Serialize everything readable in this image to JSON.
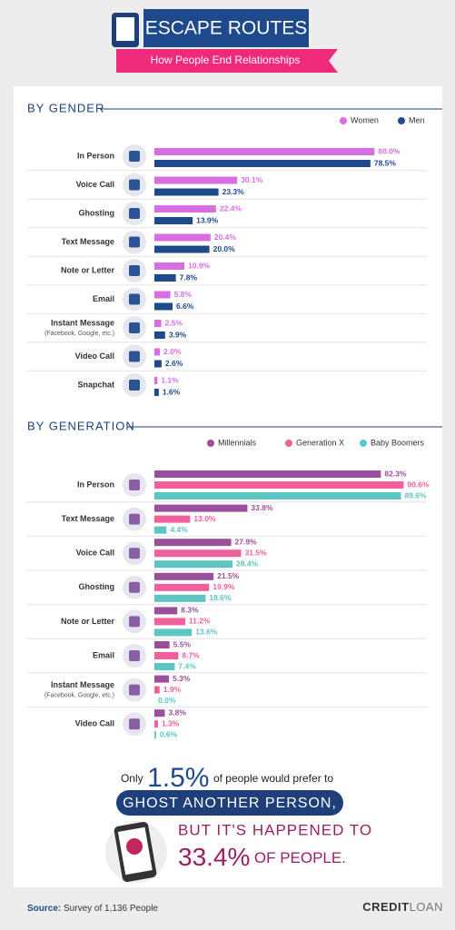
{
  "header": {
    "title": "ESCAPE ROUTES",
    "subtitle": "How People End Relationships"
  },
  "chart_data": [
    {
      "type": "bar",
      "title": "BY GENDER",
      "categories": [
        "In Person",
        "Voice Call",
        "Ghosting",
        "Text Message",
        "Note or Letter",
        "Email",
        "Instant Message",
        "Video Call",
        "Snapchat"
      ],
      "category_notes": [
        null,
        null,
        null,
        null,
        null,
        null,
        "(Facebook, Google, etc.)",
        null,
        null
      ],
      "series": [
        {
          "name": "Women",
          "color": "#d96ee0",
          "values": [
            80.0,
            30.1,
            22.4,
            20.4,
            10.9,
            5.8,
            2.5,
            2.0,
            1.1
          ],
          "value_labels": [
            "80.0%",
            "30.1%",
            "22.4%",
            "20.4%",
            "10.9%",
            "5.8%",
            "2.5%",
            "2.0%",
            "1.1%"
          ]
        },
        {
          "name": "Men",
          "color": "#1e4a8c",
          "values": [
            78.5,
            23.3,
            13.9,
            20.0,
            7.8,
            6.6,
            3.9,
            2.6,
            1.6
          ],
          "value_labels": [
            "78.5%",
            "23.3%",
            "13.9%",
            "20.0%",
            "7.8%",
            "6.6%",
            "3.9%",
            "2.6%",
            "1.6%"
          ]
        }
      ]
    },
    {
      "type": "bar",
      "title": "BY GENERATION",
      "categories": [
        "In Person",
        "Text Message",
        "Voice Call",
        "Ghosting",
        "Note or Letter",
        "Email",
        "Instant Message",
        "Video Call"
      ],
      "category_notes": [
        null,
        null,
        null,
        null,
        null,
        null,
        "(Facebook, Google, etc.)",
        null
      ],
      "series": [
        {
          "name": "Millennials",
          "color": "#9b4f9b",
          "values": [
            82.3,
            33.8,
            27.9,
            21.5,
            8.3,
            5.5,
            5.3,
            3.8
          ],
          "value_labels": [
            "82.3%",
            "33.8%",
            "27.9%",
            "21.5%",
            "8.3%",
            "5.5%",
            "5.3%",
            "3.8%"
          ]
        },
        {
          "name": "Generation X",
          "color": "#f0609a",
          "values": [
            90.6,
            13.0,
            31.5,
            19.9,
            11.2,
            8.7,
            1.9,
            1.3
          ],
          "value_labels": [
            "90.6%",
            "13.0%",
            "31.5%",
            "19.9%",
            "11.2%",
            "8.7%",
            "1.9%",
            "1.3%"
          ]
        },
        {
          "name": "Baby Boomers",
          "color": "#5fc4c4",
          "values": [
            89.6,
            4.4,
            28.4,
            18.6,
            13.6,
            7.4,
            0.0,
            0.6
          ],
          "value_labels": [
            "89.6%",
            "4.4%",
            "28.4%",
            "18.6%",
            "13.6%",
            "7.4%",
            "0.0%",
            "0.6%"
          ]
        }
      ]
    }
  ],
  "callout": {
    "line1_start": "Only",
    "line1_number": "1.5%",
    "line1_end": "of people would prefer to",
    "banner": "GHOST ANOTHER PERSON,",
    "line3": "BUT IT'S HAPPENED TO",
    "line4_number": "33.4%",
    "line4_end": "OF PEOPLE."
  },
  "footer": {
    "source_label": "Source:",
    "source_text": "Survey of 1,136 People",
    "logo_bold": "CREDIT",
    "logo_light": "LOAN"
  }
}
